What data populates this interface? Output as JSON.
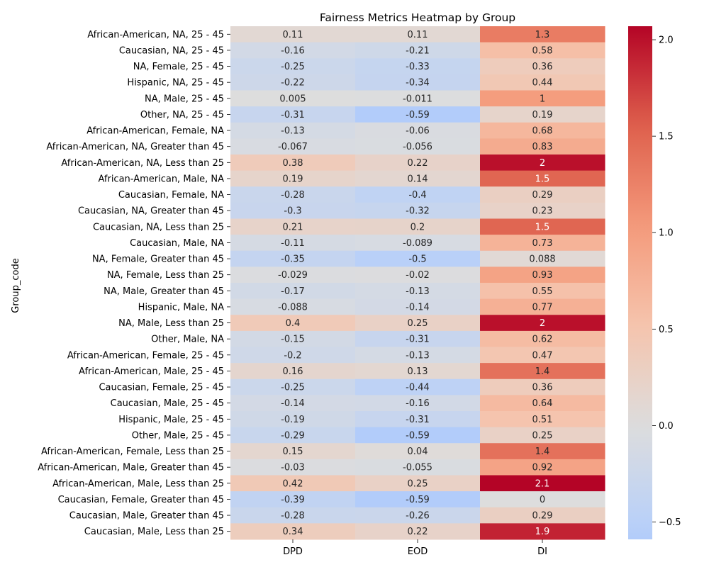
{
  "chart_data": {
    "type": "heatmap",
    "title": "Fairness Metrics Heatmap by Group",
    "ylabel": "Group_code",
    "xlabel": "",
    "columns": [
      "DPD",
      "EOD",
      "DI"
    ],
    "rows": [
      {
        "label": "African-American, NA, 25 - 45",
        "values": [
          0.11,
          0.11,
          1.3
        ],
        "labels": [
          "0.11",
          "0.11",
          "1.3"
        ]
      },
      {
        "label": "Caucasian, NA, 25 - 45",
        "values": [
          -0.16,
          -0.21,
          0.58
        ],
        "labels": [
          "-0.16",
          "-0.21",
          "0.58"
        ]
      },
      {
        "label": "NA, Female, 25 - 45",
        "values": [
          -0.25,
          -0.33,
          0.36
        ],
        "labels": [
          "-0.25",
          "-0.33",
          "0.36"
        ]
      },
      {
        "label": "Hispanic, NA, 25 - 45",
        "values": [
          -0.22,
          -0.34,
          0.44
        ],
        "labels": [
          "-0.22",
          "-0.34",
          "0.44"
        ]
      },
      {
        "label": "NA, Male, 25 - 45",
        "values": [
          0.005,
          -0.011,
          1
        ],
        "labels": [
          "0.005",
          "-0.011",
          "1"
        ]
      },
      {
        "label": "Other, NA, 25 - 45",
        "values": [
          -0.31,
          -0.59,
          0.19
        ],
        "labels": [
          "-0.31",
          "-0.59",
          "0.19"
        ]
      },
      {
        "label": "African-American, Female, NA",
        "values": [
          -0.13,
          -0.06,
          0.68
        ],
        "labels": [
          "-0.13",
          "-0.06",
          "0.68"
        ]
      },
      {
        "label": "African-American, NA, Greater than 45",
        "values": [
          -0.067,
          -0.056,
          0.83
        ],
        "labels": [
          "-0.067",
          "-0.056",
          "0.83"
        ]
      },
      {
        "label": "African-American, NA, Less than 25",
        "values": [
          0.38,
          0.22,
          2
        ],
        "labels": [
          "0.38",
          "0.22",
          "2"
        ]
      },
      {
        "label": "African-American, Male, NA",
        "values": [
          0.19,
          0.14,
          1.5
        ],
        "labels": [
          "0.19",
          "0.14",
          "1.5"
        ]
      },
      {
        "label": "Caucasian, Female, NA",
        "values": [
          -0.28,
          -0.4,
          0.29
        ],
        "labels": [
          "-0.28",
          "-0.4",
          "0.29"
        ]
      },
      {
        "label": "Caucasian, NA, Greater than 45",
        "values": [
          -0.3,
          -0.32,
          0.23
        ],
        "labels": [
          "-0.3",
          "-0.32",
          "0.23"
        ]
      },
      {
        "label": "Caucasian, NA, Less than 25",
        "values": [
          0.21,
          0.2,
          1.5
        ],
        "labels": [
          "0.21",
          "0.2",
          "1.5"
        ]
      },
      {
        "label": "Caucasian, Male, NA",
        "values": [
          -0.11,
          -0.089,
          0.73
        ],
        "labels": [
          "-0.11",
          "-0.089",
          "0.73"
        ]
      },
      {
        "label": "NA, Female, Greater than 45",
        "values": [
          -0.35,
          -0.5,
          0.088
        ],
        "labels": [
          "-0.35",
          "-0.5",
          "0.088"
        ]
      },
      {
        "label": "NA, Female, Less than 25",
        "values": [
          -0.029,
          -0.02,
          0.93
        ],
        "labels": [
          "-0.029",
          "-0.02",
          "0.93"
        ]
      },
      {
        "label": "NA, Male, Greater than 45",
        "values": [
          -0.17,
          -0.13,
          0.55
        ],
        "labels": [
          "-0.17",
          "-0.13",
          "0.55"
        ]
      },
      {
        "label": "Hispanic, Male, NA",
        "values": [
          -0.088,
          -0.14,
          0.77
        ],
        "labels": [
          "-0.088",
          "-0.14",
          "0.77"
        ]
      },
      {
        "label": "NA, Male, Less than 25",
        "values": [
          0.4,
          0.25,
          2
        ],
        "labels": [
          "0.4",
          "0.25",
          "2"
        ]
      },
      {
        "label": "Other, Male, NA",
        "values": [
          -0.15,
          -0.31,
          0.62
        ],
        "labels": [
          "-0.15",
          "-0.31",
          "0.62"
        ]
      },
      {
        "label": "African-American, Female, 25 - 45",
        "values": [
          -0.2,
          -0.13,
          0.47
        ],
        "labels": [
          "-0.2",
          "-0.13",
          "0.47"
        ]
      },
      {
        "label": "African-American, Male, 25 - 45",
        "values": [
          0.16,
          0.13,
          1.4
        ],
        "labels": [
          "0.16",
          "0.13",
          "1.4"
        ]
      },
      {
        "label": "Caucasian, Female, 25 - 45",
        "values": [
          -0.25,
          -0.44,
          0.36
        ],
        "labels": [
          "-0.25",
          "-0.44",
          "0.36"
        ]
      },
      {
        "label": "Caucasian, Male, 25 - 45",
        "values": [
          -0.14,
          -0.16,
          0.64
        ],
        "labels": [
          "-0.14",
          "-0.16",
          "0.64"
        ]
      },
      {
        "label": "Hispanic, Male, 25 - 45",
        "values": [
          -0.19,
          -0.31,
          0.51
        ],
        "labels": [
          "-0.19",
          "-0.31",
          "0.51"
        ]
      },
      {
        "label": "Other, Male, 25 - 45",
        "values": [
          -0.29,
          -0.59,
          0.25
        ],
        "labels": [
          "-0.29",
          "-0.59",
          "0.25"
        ]
      },
      {
        "label": "African-American, Female, Less than 25",
        "values": [
          0.15,
          0.04,
          1.4
        ],
        "labels": [
          "0.15",
          "0.04",
          "1.4"
        ]
      },
      {
        "label": "African-American, Male, Greater than 45",
        "values": [
          -0.03,
          -0.055,
          0.92
        ],
        "labels": [
          "-0.03",
          "-0.055",
          "0.92"
        ]
      },
      {
        "label": "African-American, Male, Less than 25",
        "values": [
          0.42,
          0.25,
          2.1
        ],
        "labels": [
          "0.42",
          "0.25",
          "2.1"
        ]
      },
      {
        "label": "Caucasian, Female, Greater than 45",
        "values": [
          -0.39,
          -0.59,
          0
        ],
        "labels": [
          "-0.39",
          "-0.59",
          "0"
        ]
      },
      {
        "label": "Caucasian, Male, Greater than 45",
        "values": [
          -0.28,
          -0.26,
          0.29
        ],
        "labels": [
          "-0.28",
          "-0.26",
          "0.29"
        ]
      },
      {
        "label": "Caucasian, Male, Less than 25",
        "values": [
          0.34,
          0.22,
          1.9
        ],
        "labels": [
          "0.34",
          "0.22",
          "1.9"
        ]
      }
    ],
    "colormap": "coolwarm",
    "center": 0,
    "vmin": -0.59,
    "vmax": 2.07,
    "colorbar": {
      "ticks": [
        -0.5,
        0.0,
        0.5,
        1.0,
        1.5,
        2.0
      ],
      "tick_labels": [
        "−0.5",
        "0.0",
        "0.5",
        "1.0",
        "1.5",
        "2.0"
      ]
    },
    "annotations": true,
    "grid": false
  }
}
